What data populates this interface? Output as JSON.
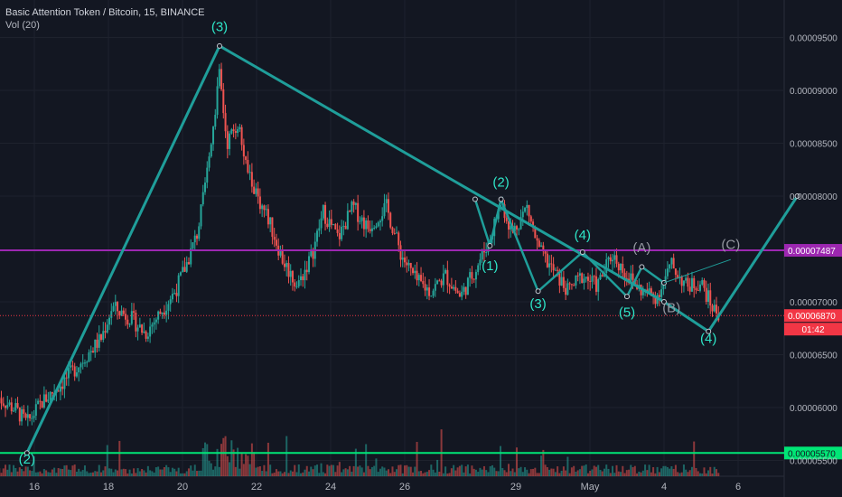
{
  "header": {
    "title": "Basic Attention Token / Bitcoin, 15, BINANCE",
    "indicator": "Vol (20)"
  },
  "chart_data": {
    "type": "candlestick",
    "symbol": "BAT/BTC",
    "interval": "15",
    "exchange": "BINANCE",
    "y_ticks": [
      "0.00009500",
      "0.00009000",
      "0.00008500",
      "0.00008000",
      "0.00007000",
      "0.00006500",
      "0.00006000",
      "0.00005500"
    ],
    "y_tick_values": [
      9.5e-05,
      9e-05,
      8.5e-05,
      8e-05,
      7e-05,
      6.5e-05,
      6e-05,
      5.5e-05
    ],
    "x_ticks": [
      "16",
      "18",
      "20",
      "22",
      "24",
      "26",
      "29",
      "May",
      "4",
      "6"
    ],
    "price_path": [
      [
        15.0,
        6.1e-05
      ],
      [
        15.5,
        5.98e-05
      ],
      [
        15.8,
        5.85e-05
      ],
      [
        16.2,
        6.05e-05
      ],
      [
        16.8,
        6.25e-05
      ],
      [
        17.3,
        6.45e-05
      ],
      [
        17.8,
        6.65e-05
      ],
      [
        18.1,
        6.95e-05
      ],
      [
        18.6,
        6.85e-05
      ],
      [
        19.0,
        6.7e-05
      ],
      [
        19.4,
        6.9e-05
      ],
      [
        19.8,
        7.1e-05
      ],
      [
        20.1,
        7.35e-05
      ],
      [
        20.4,
        7.65e-05
      ],
      [
        20.6,
        8.05e-05
      ],
      [
        20.8,
        8.6e-05
      ],
      [
        21.0,
        9.15e-05
      ],
      [
        21.2,
        8.5e-05
      ],
      [
        21.5,
        8.7e-05
      ],
      [
        21.7,
        8.3e-05
      ],
      [
        22.0,
        8e-05
      ],
      [
        22.3,
        7.8e-05
      ],
      [
        22.7,
        7.4e-05
      ],
      [
        23.1,
        7.15e-05
      ],
      [
        23.5,
        7.45e-05
      ],
      [
        23.8,
        7.85e-05
      ],
      [
        24.2,
        7.6e-05
      ],
      [
        24.6,
        7.9e-05
      ],
      [
        25.0,
        7.7e-05
      ],
      [
        25.5,
        7.9e-05
      ],
      [
        25.9,
        7.45e-05
      ],
      [
        26.3,
        7.2e-05
      ],
      [
        26.7,
        7.1e-05
      ],
      [
        27.1,
        7.25e-05
      ],
      [
        27.5,
        7.05e-05
      ],
      [
        27.9,
        7.3e-05
      ],
      [
        28.3,
        7.6e-05
      ],
      [
        28.6,
        7.95e-05
      ],
      [
        28.9,
        7.65e-05
      ],
      [
        29.3,
        7.9e-05
      ],
      [
        29.6,
        7.5e-05
      ],
      [
        30.0,
        7.3e-05
      ],
      [
        30.4,
        7.1e-05
      ],
      [
        30.8,
        7.25e-05
      ],
      [
        31.2,
        7.15e-05
      ],
      [
        31.6,
        7.45e-05
      ],
      [
        32.0,
        7.25e-05
      ],
      [
        32.4,
        7.1e-05
      ],
      [
        32.8,
        7.05e-05
      ],
      [
        33.2,
        7.35e-05
      ],
      [
        33.6,
        7.15e-05
      ],
      [
        34.0,
        7.18e-05
      ],
      [
        34.3,
        6.95e-05
      ],
      [
        34.5,
        6.87e-05
      ]
    ],
    "horizontal_lines": [
      {
        "name": "purple-level",
        "value": 7.487e-05,
        "label": "0.00007487",
        "color": "#9c27b0"
      },
      {
        "name": "current-price",
        "value": 6.87e-05,
        "label": "0.00006870",
        "color": "#f23645",
        "dashed": true
      },
      {
        "name": "green-level",
        "value": 5.57e-05,
        "label": "0.00005570",
        "color": "#00e676"
      }
    ],
    "price_countdown": "01:42",
    "wave_lines": [
      [
        [
          15.8,
          5.57e-05
        ],
        [
          21.0,
          9.42e-05
        ],
        [
          33.0,
          7e-05
        ],
        [
          34.2,
          6.72e-05
        ],
        [
          36.6,
          8e-05
        ]
      ],
      [
        [
          27.9,
          7.97e-05
        ],
        [
          28.3,
          7.53e-05
        ],
        [
          28.6,
          7.97e-05
        ],
        [
          29.6,
          7.1e-05
        ],
        [
          30.8,
          7.47e-05
        ],
        [
          32.0,
          7.05e-05
        ],
        [
          32.4,
          7.33e-05
        ],
        [
          33.0,
          7.18e-05
        ]
      ]
    ],
    "projection_line": [
      [
        33.0,
        7.18e-05
      ],
      [
        34.8,
        7.4e-05
      ]
    ],
    "wave_labels": [
      {
        "text": "(3)",
        "x": 21.0,
        "y": 9.56e-05,
        "color": "teal"
      },
      {
        "text": "(2)",
        "x": 15.8,
        "y": 5.47e-05,
        "color": "teal"
      },
      {
        "text": "(2)",
        "x": 28.6,
        "y": 8.09e-05,
        "color": "teal"
      },
      {
        "text": "(1)",
        "x": 28.3,
        "y": 7.3e-05,
        "color": "teal"
      },
      {
        "text": "(3)",
        "x": 29.6,
        "y": 6.94e-05,
        "color": "teal"
      },
      {
        "text": "(4)",
        "x": 30.8,
        "y": 7.59e-05,
        "color": "teal"
      },
      {
        "text": "(5)",
        "x": 32.0,
        "y": 6.86e-05,
        "color": "teal"
      },
      {
        "text": "(A)",
        "x": 32.4,
        "y": 7.47e-05,
        "color": "gray"
      },
      {
        "text": "(B)",
        "x": 33.2,
        "y": 6.9e-05,
        "color": "gray"
      },
      {
        "text": "(C)",
        "x": 34.8,
        "y": 7.5e-05,
        "color": "gray"
      },
      {
        "text": "(4)",
        "x": 34.2,
        "y": 6.61e-05,
        "color": "teal"
      }
    ]
  },
  "colors": {
    "background": "#131722",
    "up": "#26a69a",
    "down": "#ef5350",
    "wave": "#1f9e9a",
    "wave_label": "#2ee6c8",
    "gray_label": "#9598a1"
  }
}
